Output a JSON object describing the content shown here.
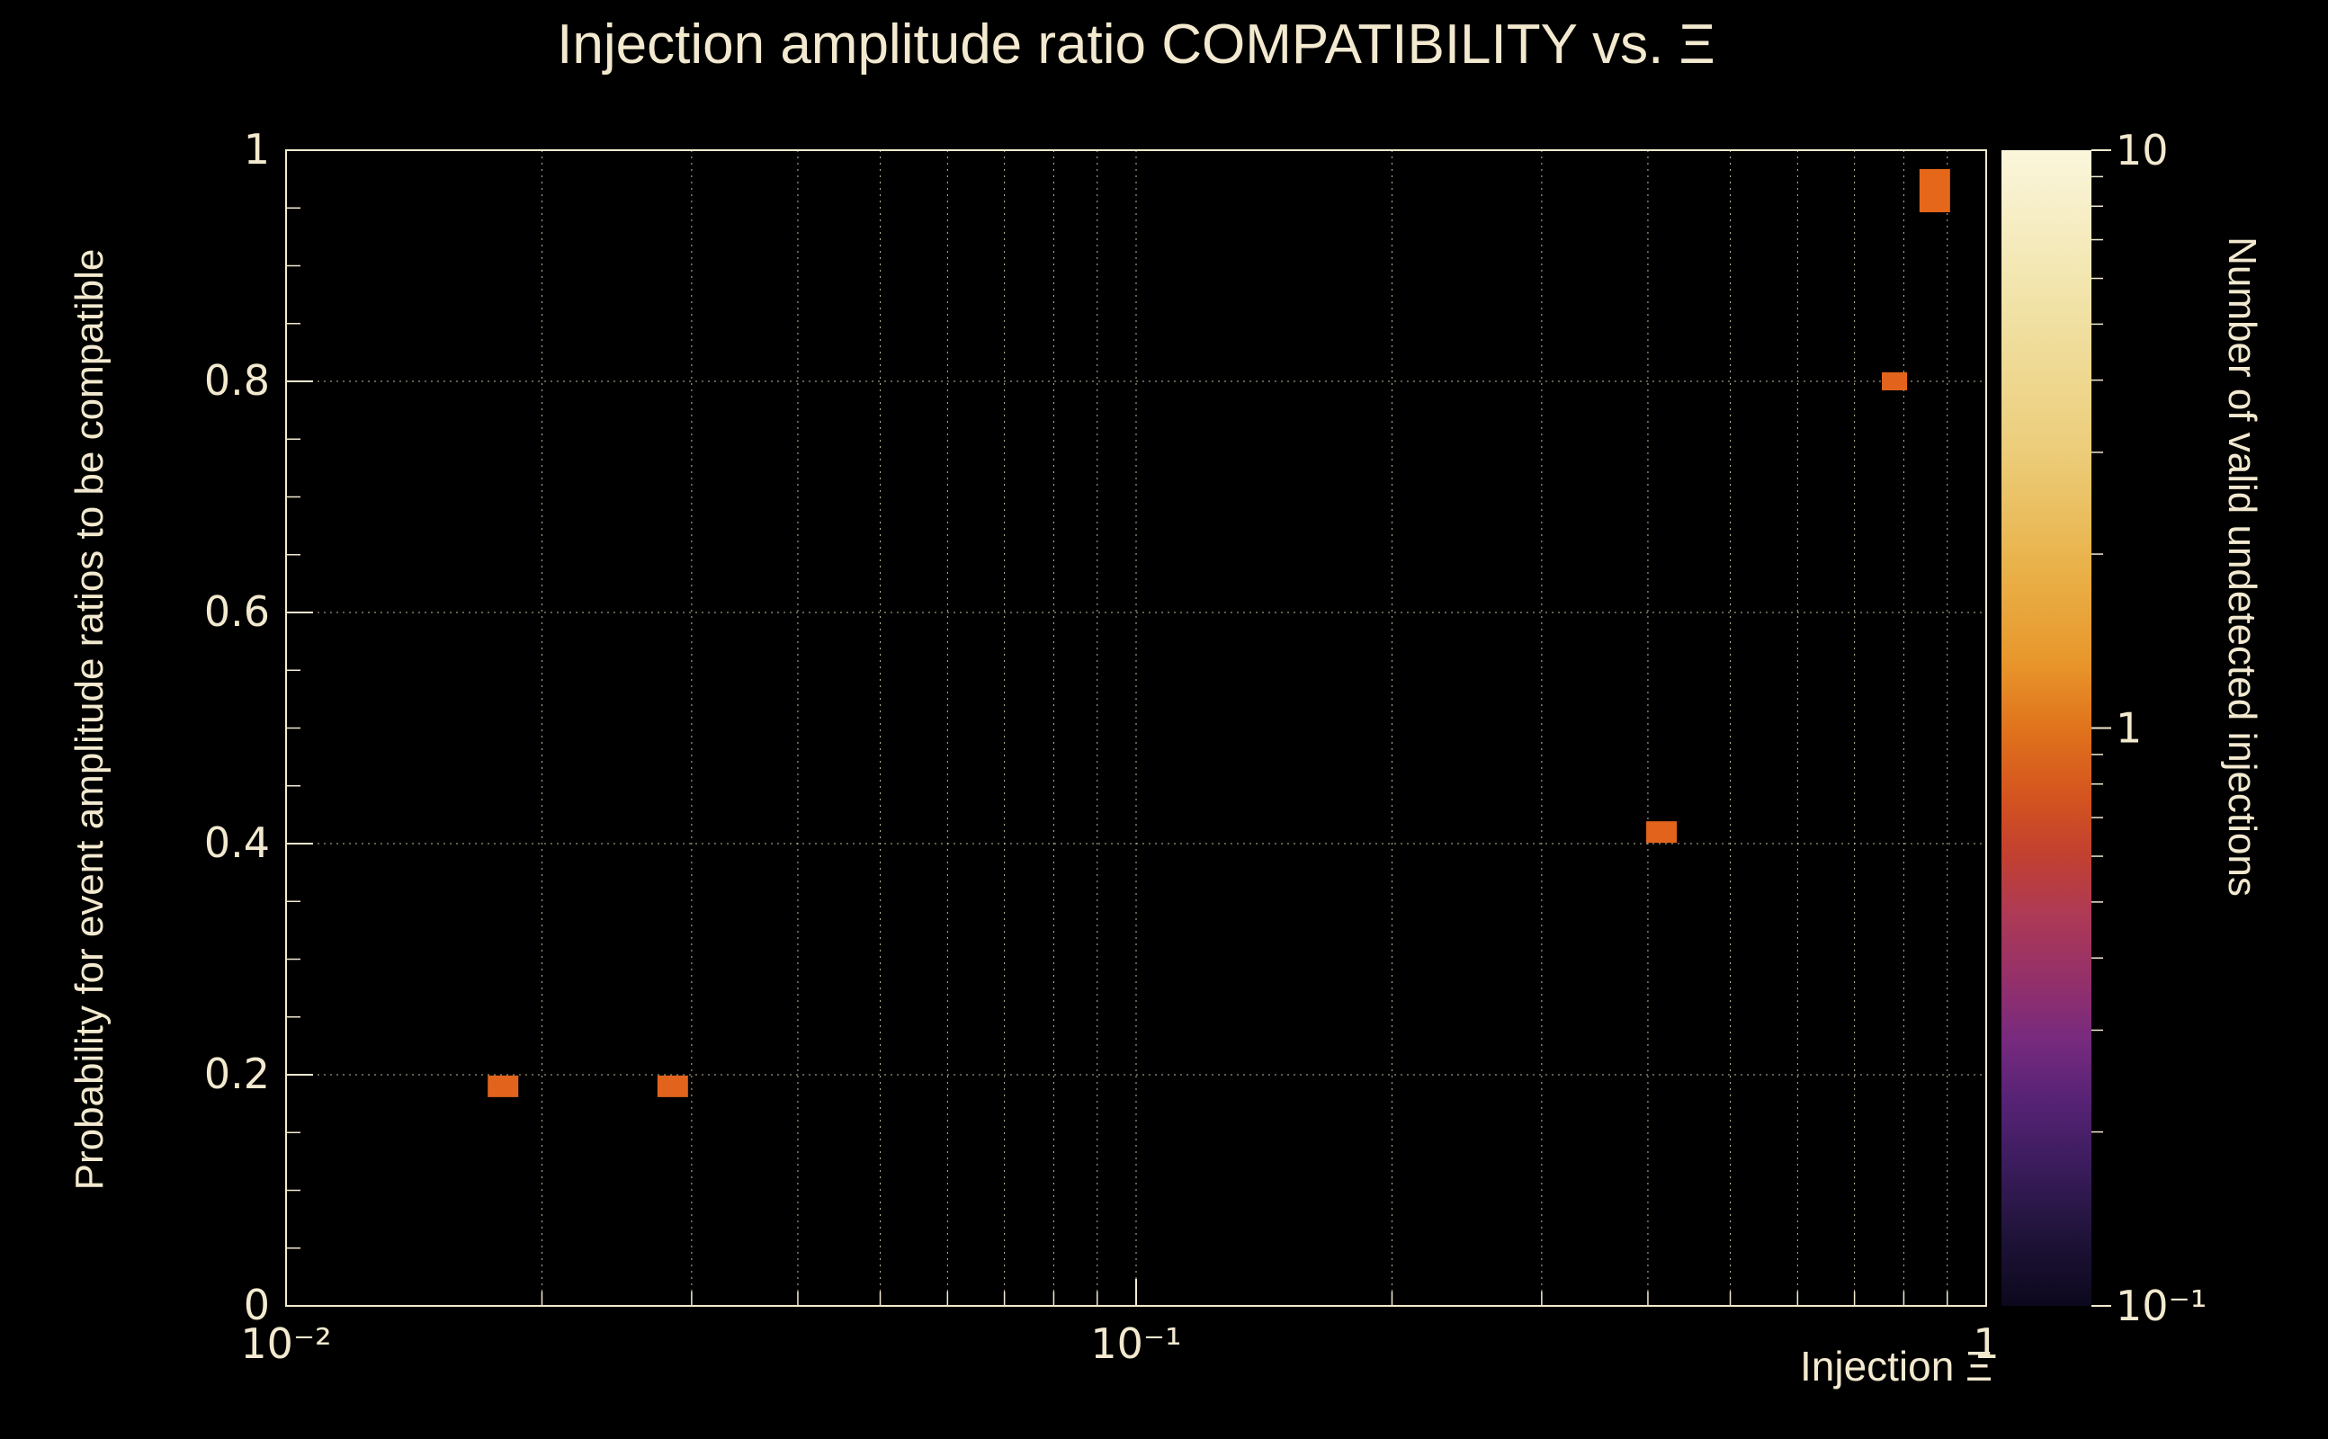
{
  "chart_data": {
    "type": "scatter",
    "title": "Injection amplitude ratio COMPATIBILITY vs.  Ξ",
    "xlabel": "Injection Ξ",
    "ylabel": "Probability for event amplitude ratios to be compatible",
    "x_scale": "log",
    "xlim": [
      0.01,
      1
    ],
    "ylim": [
      0,
      1
    ],
    "grid": "dotted",
    "x_ticks": [
      {
        "value": 0.01,
        "label": "10⁻²"
      },
      {
        "value": 0.1,
        "label": "10⁻¹"
      },
      {
        "value": 1,
        "label": "1"
      }
    ],
    "y_ticks": [
      {
        "value": 0,
        "label": "0"
      },
      {
        "value": 0.2,
        "label": "0.2"
      },
      {
        "value": 0.4,
        "label": "0.4"
      },
      {
        "value": 0.6,
        "label": "0.6"
      },
      {
        "value": 0.8,
        "label": "0.8"
      },
      {
        "value": 1,
        "label": "1"
      }
    ],
    "y_minor_step": 0.05,
    "points": [
      {
        "x": 0.018,
        "y": 0.19,
        "value": 1,
        "w": 34,
        "h": 24,
        "color": "#e2641c"
      },
      {
        "x": 0.0285,
        "y": 0.19,
        "value": 1,
        "w": 34,
        "h": 24,
        "color": "#e2641c"
      },
      {
        "x": 0.415,
        "y": 0.41,
        "value": 1,
        "w": 34,
        "h": 24,
        "color": "#e2641c"
      },
      {
        "x": 0.78,
        "y": 0.8,
        "value": 1,
        "w": 28,
        "h": 20,
        "color": "#e2641c"
      },
      {
        "x": 0.87,
        "y": 0.965,
        "value": 1,
        "w": 34,
        "h": 48,
        "color": "#e5671a"
      }
    ],
    "colorbar": {
      "label": "Number of valid undetected injections",
      "scale": "log",
      "range": [
        0.1,
        10
      ],
      "ticks": [
        {
          "value": 10,
          "label": "10"
        },
        {
          "value": 1,
          "label": "1"
        },
        {
          "value": 0.1,
          "label": "10⁻¹"
        }
      ],
      "gradient": [
        [
          "0%",
          "#fbf6dc"
        ],
        [
          "13%",
          "#f1e3a8"
        ],
        [
          "26%",
          "#eccd7a"
        ],
        [
          "36%",
          "#e9b24a"
        ],
        [
          "44%",
          "#e8982c"
        ],
        [
          "50%",
          "#e0731c"
        ],
        [
          "56%",
          "#d4541f"
        ],
        [
          "61%",
          "#c24030"
        ],
        [
          "66%",
          "#ae3a55"
        ],
        [
          "72%",
          "#93306b"
        ],
        [
          "77%",
          "#772a7e"
        ],
        [
          "82%",
          "#582376"
        ],
        [
          "88%",
          "#3a1c5c"
        ],
        [
          "94%",
          "#1f1339"
        ],
        [
          "100%",
          "#0c081d"
        ]
      ]
    },
    "colors": {
      "background": "#000000",
      "foreground": "#f2e9cf",
      "grid": "#d8cfad"
    }
  }
}
